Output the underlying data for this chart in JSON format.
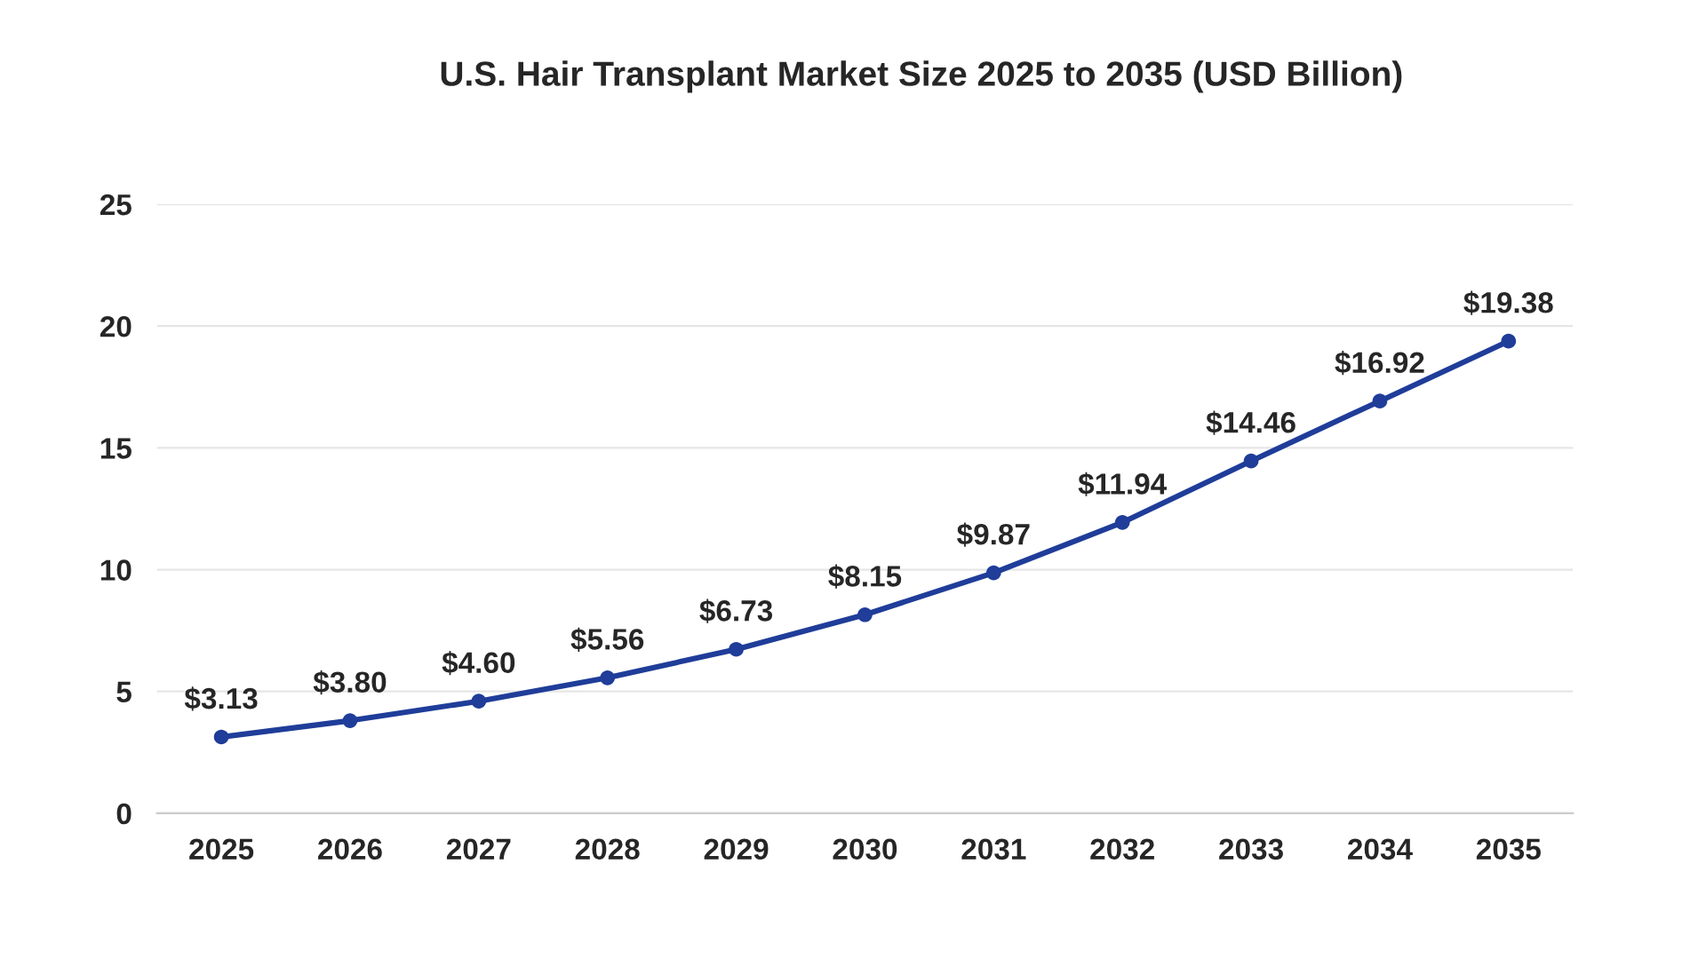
{
  "chart_data": {
    "type": "line",
    "title": "U.S. Hair Transplant Market Size 2025 to 2035 (USD Billion)",
    "categories": [
      "2025",
      "2026",
      "2027",
      "2028",
      "2029",
      "2030",
      "2031",
      "2032",
      "2033",
      "2034",
      "2035"
    ],
    "series": [
      {
        "color": "#1f3d99",
        "values": [
          3.13,
          3.8,
          4.6,
          5.56,
          6.73,
          8.15,
          9.87,
          11.94,
          14.46,
          16.92,
          19.38
        ],
        "value_labels": [
          "$3.13",
          "$3.80",
          "$4.60",
          "$5.56",
          "$6.73",
          "$8.15",
          "$9.87",
          "$11.94",
          "$14.46",
          "$16.92",
          "$19.38"
        ]
      }
    ],
    "ylim": [
      0,
      25
    ],
    "yticks": [
      0,
      5,
      10,
      15,
      20,
      25
    ],
    "grid": "y",
    "marker": "circle",
    "line_style": "solid"
  }
}
